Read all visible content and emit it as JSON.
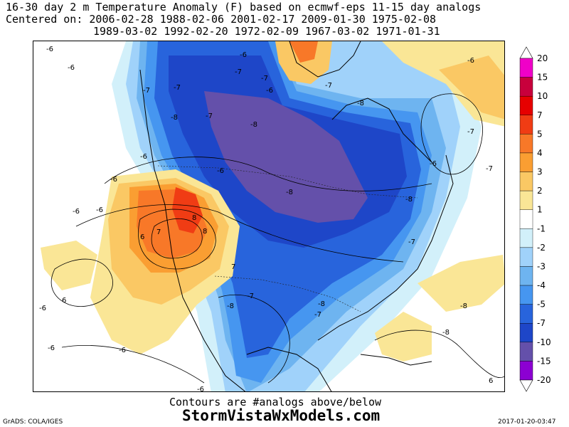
{
  "title": {
    "line1": "16-30 day 2 m Temperature Anomaly (F) based on ecmwf-eps 11-15 day analogs",
    "line2": "Centered on: 2006-02-28 1988-02-06 2001-02-17 2009-01-30 1975-02-08",
    "line3": "1989-03-02 1992-02-20 1972-02-09 1967-03-02 1971-01-31"
  },
  "legend": {
    "labels": [
      "20",
      "15",
      "10",
      "7",
      "5",
      "4",
      "3",
      "2",
      "1",
      "-1",
      "-2",
      "-3",
      "-4",
      "-5",
      "-7",
      "-10",
      "-15",
      "-20"
    ],
    "colors": [
      "#f000c8",
      "#c8003c",
      "#e60000",
      "#f03c14",
      "#f87828",
      "#fa9e32",
      "#fac864",
      "#fae696",
      "#ffffff",
      "#d2f0fa",
      "#a0d2fa",
      "#6eb4f0",
      "#4696f0",
      "#2864dc",
      "#1e46c8",
      "#6450aa",
      "#8c00d2"
    ]
  },
  "colors": {
    "cold5": "#1e46c8",
    "cold4": "#2864dc",
    "cold3": "#4696f0",
    "cold2": "#6eb4f0",
    "cold1": "#a0d2fa",
    "cold0": "#d2f0fa",
    "purple": "#6450aa",
    "warm1": "#fae696",
    "warm2": "#fac864",
    "warm3": "#fa9e32",
    "warm4": "#f87828",
    "warm5": "#f03c14"
  },
  "contour_labels": [
    "-6",
    "-6",
    "-7",
    "-7",
    "-7",
    "-6",
    "-7",
    "-7",
    "-6",
    "-8",
    "-8",
    "-6",
    "-7",
    "-6",
    "-8",
    "-8",
    "-8",
    "-8",
    "-7",
    "-6",
    "-6",
    "-6",
    "6",
    "7",
    "8",
    "8",
    "6",
    "7",
    "-6",
    "-7",
    "-8",
    "-8",
    "-7",
    "-7",
    "-7",
    "-6",
    "-6",
    "-6",
    "6",
    "-6",
    "-6",
    "-8"
  ],
  "footer": {
    "subtitle": "Contours are #analogs above/below",
    "site": "StormVistaWxModels.com",
    "left": "GrADS: COLA/IGES",
    "right": "2017-01-20-03:47"
  }
}
